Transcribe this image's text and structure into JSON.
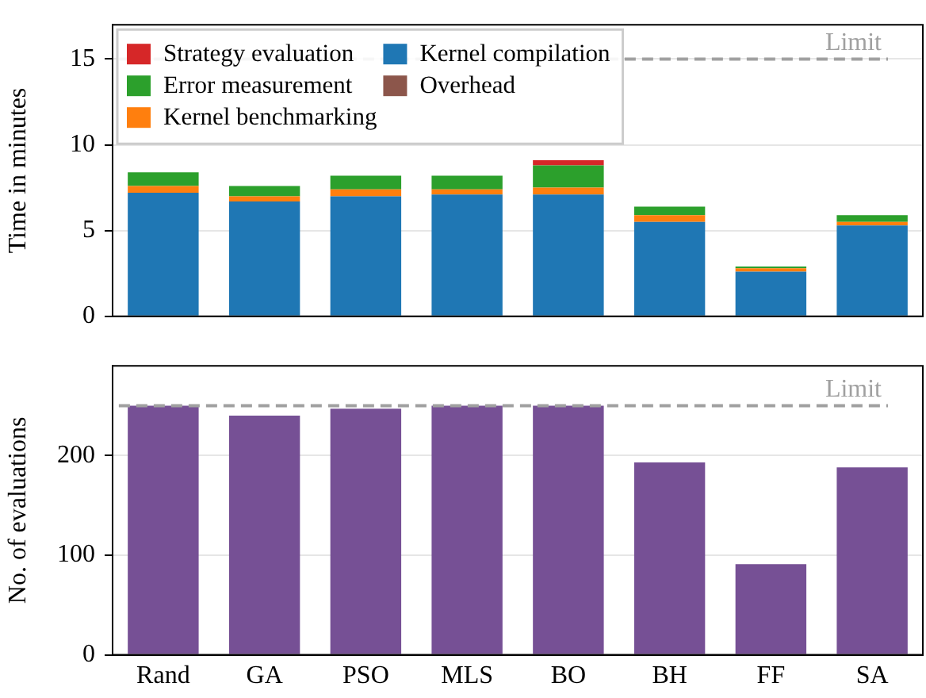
{
  "chart_data": [
    {
      "type": "bar",
      "ylabel": "Time in minutes",
      "categories": [
        null,
        null,
        null,
        null,
        null,
        null,
        null,
        null
      ],
      "stacked": true,
      "series": [
        {
          "name": "Overhead",
          "color": "#8c564b",
          "values": [
            0,
            0,
            0,
            0,
            0,
            0,
            0,
            0
          ]
        },
        {
          "name": "Kernel compilation",
          "color": "#1f77b4",
          "values": [
            7.2,
            6.7,
            7.0,
            7.1,
            7.1,
            5.5,
            2.6,
            5.3
          ]
        },
        {
          "name": "Kernel benchmarking",
          "color": "#ff7f0e",
          "values": [
            0.4,
            0.3,
            0.4,
            0.3,
            0.4,
            0.4,
            0.2,
            0.2
          ]
        },
        {
          "name": "Error measurement",
          "color": "#2ca02c",
          "values": [
            0.8,
            0.6,
            0.8,
            0.8,
            1.3,
            0.5,
            0.1,
            0.4
          ]
        },
        {
          "name": "Strategy evaluation",
          "color": "#d62728",
          "values": [
            0,
            0,
            0,
            0,
            0.3,
            0,
            0,
            0
          ]
        }
      ],
      "ylim": [
        0,
        17
      ],
      "yticks": [
        0,
        5,
        10,
        15
      ],
      "grid": "y",
      "legend": "top left",
      "tick_labels": "y",
      "ref_lines": [
        {
          "axis": "y",
          "value": 15,
          "label": "Limit",
          "color": "#a0a0a0",
          "line_style": "dashed"
        }
      ]
    },
    {
      "type": "bar",
      "ylabel": "No. of evaluations",
      "categories": [
        "Rand",
        "GA",
        "PSO",
        "MLS",
        "BO",
        "BH",
        "FF",
        "SA"
      ],
      "values": [
        250,
        240,
        247,
        250,
        250,
        193,
        91,
        188
      ],
      "color": "#765095",
      "ylim": [
        0,
        290
      ],
      "yticks": [
        0,
        100,
        200
      ],
      "grid": "y",
      "ref_lines": [
        {
          "axis": "y",
          "value": 250,
          "label": "Limit",
          "color": "#a0a0a0",
          "line_style": "dashed"
        }
      ]
    }
  ]
}
